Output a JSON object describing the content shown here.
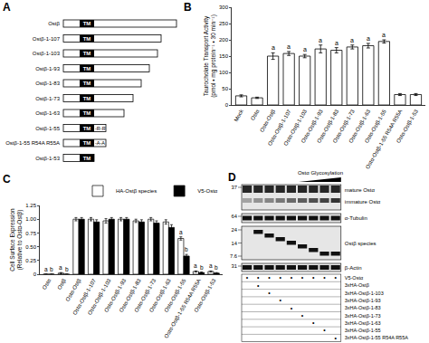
{
  "panel_labels": [
    "A",
    "B",
    "C",
    "D"
  ],
  "diagram": {
    "tm_label": "TM",
    "constructs": [
      {
        "label": "Ostβ"
      },
      {
        "label": "Ostβ-1-107"
      },
      {
        "label": "Ostβ-1-103"
      },
      {
        "label": "Ostβ-1-93"
      },
      {
        "label": "Ostβ-1-83"
      },
      {
        "label": "Ostβ-1-73"
      },
      {
        "label": "Ostβ-1-63"
      },
      {
        "label": "Ostβ-1-55",
        "suffix": "-R-R"
      },
      {
        "label": "Ostβ-1-55 R54A R55A",
        "suffix": "-A-A"
      },
      {
        "label": "Ostβ-1-53"
      }
    ]
  },
  "chart_data": [
    {
      "type": "bar",
      "ylabel": [
        "Taurocholate Transport Activity",
        "(pmol • mg protein⁻¹ • 30 min⁻¹)"
      ],
      "categories": [
        "Mock",
        "Ostα",
        "Ostα-Ostβ",
        "Ostα-Ostβ-1-107",
        "Ostα-Ostβ-1-103",
        "Ostα-Ostβ-1-93",
        "Ostα-Ostβ-1-83",
        "Ostα-Ostβ-1-73",
        "Ostα-Ostβ-1-63",
        "Ostα-Ostβ-1-55",
        "Ostα-Ostβ-1-55 R54A R55A",
        "Ostα-Ostβ-1-53"
      ],
      "values": [
        28,
        22,
        150,
        158,
        150,
        172,
        168,
        178,
        182,
        195,
        32,
        32
      ],
      "errors": [
        3,
        2,
        10,
        6,
        5,
        12,
        8,
        6,
        7,
        5,
        3,
        3
      ],
      "letters": [
        null,
        null,
        "a",
        "a",
        "a",
        "a",
        "a",
        "a",
        "a",
        "a",
        null,
        null
      ],
      "color": "#ffffff",
      "ylim": [
        0,
        300
      ],
      "yticks": [
        0,
        50,
        100,
        150,
        200,
        250,
        300
      ]
    },
    {
      "type": "bar",
      "ylabel": [
        "Cell Surface Expression",
        "(Relative to Ostα-Ostβ)"
      ],
      "categories": [
        "Ostα",
        "Ostβ",
        "Ostα-Ostβ",
        "Ostα-Ostβ-1-107",
        "Ostα-Ostβ-1-103",
        "Ostα-Ostβ-1-93",
        "Ostα-Ostβ-1-83",
        "Ostα-Ostβ-1-73",
        "Ostα-Ostβ-1-63",
        "Ostα-Ostβ-1-55",
        "Ostα-Ostβ-1-55 R54A R55A",
        "Ostα-Ostβ-1-53"
      ],
      "series": [
        {
          "name": "HA-Ostβ species",
          "color": "#ffffff",
          "values": [
            0,
            0.02,
            1.0,
            1.0,
            0.97,
            1.0,
            0.97,
            1.0,
            0.95,
            0.65,
            0.05,
            0.05
          ],
          "errors": [
            0,
            0.01,
            0.03,
            0.03,
            0.04,
            0.03,
            0.03,
            0.03,
            0.04,
            0.03,
            0.01,
            0.01
          ],
          "letters": [
            "a",
            "a",
            null,
            null,
            null,
            null,
            null,
            null,
            null,
            "a",
            "a",
            "a"
          ]
        },
        {
          "name": "V5-Ostα",
          "color": "#000000",
          "values": [
            0,
            0,
            1.0,
            0.95,
            1.0,
            1.0,
            0.95,
            0.93,
            0.85,
            0.33,
            0.03,
            0.02
          ],
          "errors": [
            0,
            0,
            0.03,
            0.04,
            0.03,
            0.03,
            0.04,
            0.04,
            0.05,
            0.03,
            0.01,
            0.01
          ],
          "letters": [
            "b",
            "b",
            null,
            null,
            null,
            null,
            null,
            null,
            null,
            "b",
            "b",
            "b"
          ]
        }
      ],
      "ylim": [
        0,
        1.25
      ],
      "yticks": [
        0,
        0.25,
        {
          "value": 0.5,
          "label": "0.50"
        },
        0.75,
        {
          "value": 1,
          "label": "1.00"
        },
        1.25
      ],
      "legend": "top right"
    }
  ],
  "blot": {
    "title": "Ostα Glycosylation",
    "panels": [
      {
        "labels": [
          "mature Ostα",
          "immature Ostα"
        ],
        "markers": [
          37
        ]
      },
      {
        "labels": [
          "α-Tubulin"
        ],
        "markers": [
          64
        ]
      },
      {
        "labels": [
          "Ostβ species"
        ],
        "markers": [
          24,
          14,
          7.6
        ]
      },
      {
        "labels": [
          "β-Actin"
        ],
        "markers": [
          31
        ]
      }
    ],
    "mark": "•",
    "rows": [
      {
        "label": "V5-Ostα",
        "present": [
          true,
          true,
          true,
          true,
          true,
          true,
          true,
          true,
          true
        ]
      },
      {
        "label": "3xHA-Ostβ",
        "present": [
          false,
          true,
          false,
          false,
          false,
          false,
          false,
          false,
          false
        ]
      },
      {
        "label": "3xHA-Ostβ-1-103",
        "present": [
          false,
          false,
          true,
          false,
          false,
          false,
          false,
          false,
          false
        ]
      },
      {
        "label": "3xHA-Ostβ-1-93",
        "present": [
          false,
          false,
          false,
          true,
          false,
          false,
          false,
          false,
          false
        ]
      },
      {
        "label": "3xHA-Ostβ-1-83",
        "present": [
          false,
          false,
          false,
          false,
          true,
          false,
          false,
          false,
          false
        ]
      },
      {
        "label": "3xHA-Ostβ-1-73",
        "present": [
          false,
          false,
          false,
          false,
          false,
          true,
          false,
          false,
          false
        ]
      },
      {
        "label": "3xHA-Ostβ-1-63",
        "present": [
          false,
          false,
          false,
          false,
          false,
          false,
          true,
          false,
          false
        ]
      },
      {
        "label": "3xHA-Ostβ-1-55",
        "present": [
          false,
          false,
          false,
          false,
          false,
          false,
          false,
          true,
          false
        ]
      },
      {
        "label": "3xHA-Ostβ-1-55 R54A R55A",
        "present": [
          false,
          false,
          false,
          false,
          false,
          false,
          false,
          false,
          true
        ]
      }
    ]
  }
}
